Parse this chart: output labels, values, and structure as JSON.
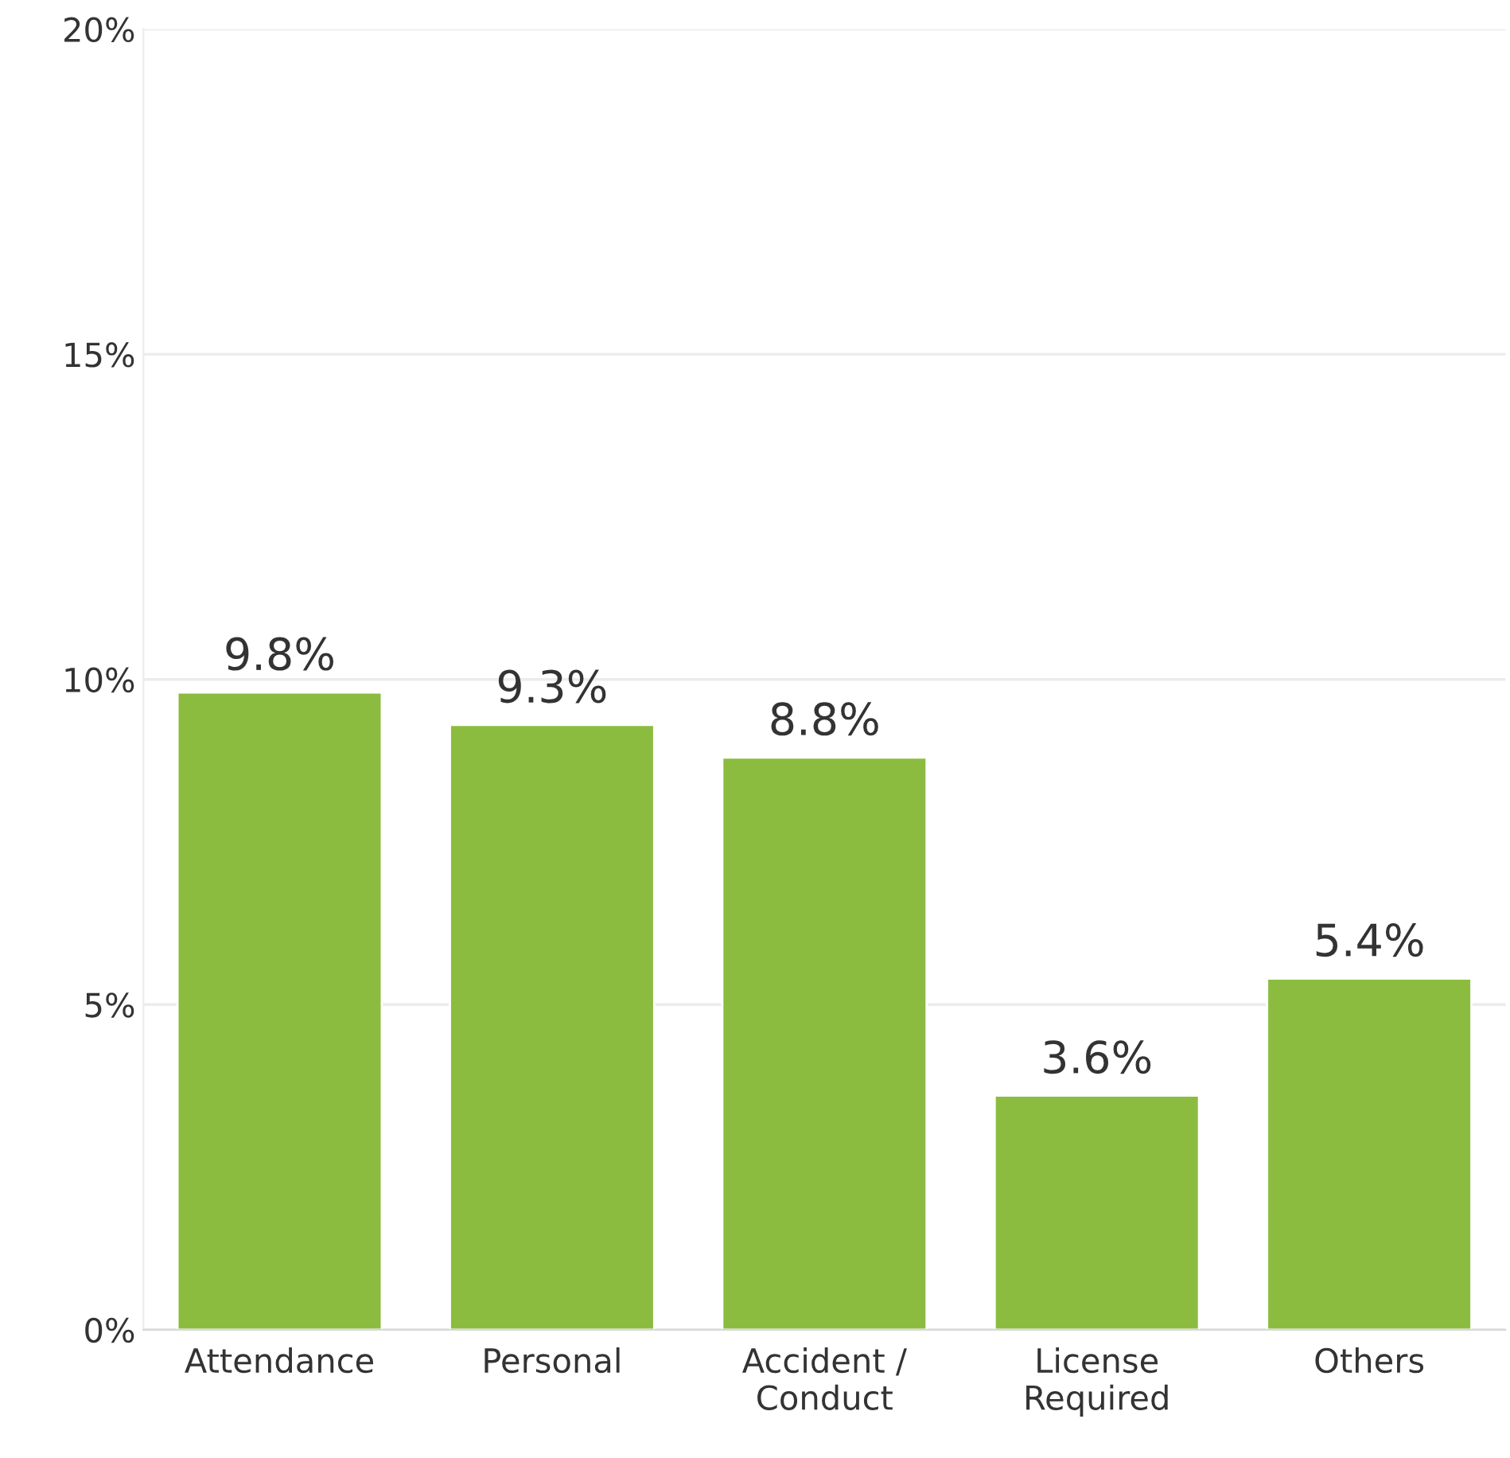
{
  "chart_data": {
    "type": "bar",
    "categories": [
      "Attendance",
      "Personal",
      "Accident /\nConduct",
      "License\nRequired",
      "Others"
    ],
    "values": [
      9.8,
      9.3,
      8.8,
      3.6,
      5.4
    ],
    "value_labels": [
      "9.8%",
      "9.3%",
      "8.8%",
      "3.6%",
      "5.4%"
    ],
    "color": "#8bbc40",
    "ylim": [
      0,
      20
    ],
    "yticks": [
      {
        "value": 0,
        "label": "0%"
      },
      {
        "value": 5,
        "label": "5%"
      },
      {
        "value": 10,
        "label": "10%"
      },
      {
        "value": 15,
        "label": "15%"
      },
      {
        "value": 20,
        "label": "20%"
      }
    ],
    "grid": "y",
    "legend": false
  }
}
